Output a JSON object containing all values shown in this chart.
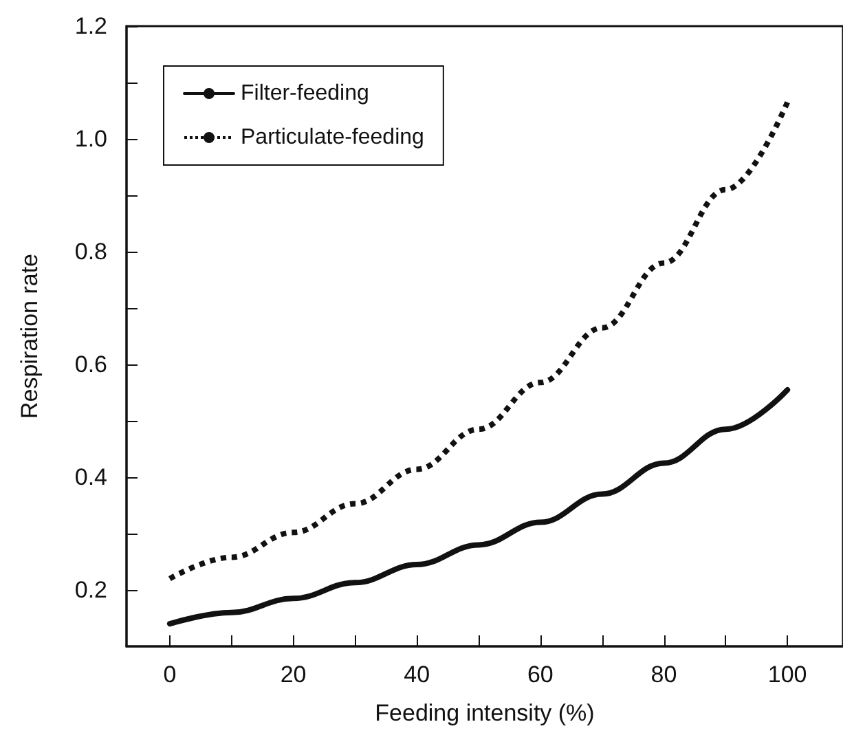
{
  "chart_data": {
    "type": "line",
    "xlabel": "Feeding intensity (%)",
    "ylabel": "Respiration rate",
    "x": [
      0,
      10,
      20,
      30,
      40,
      50,
      60,
      70,
      80,
      90,
      100
    ],
    "series": [
      {
        "name": "Filter-feeding",
        "color": "#111111",
        "line_style": "solid",
        "values": [
          0.14,
          0.16,
          0.185,
          0.213,
          0.245,
          0.28,
          0.32,
          0.37,
          0.425,
          0.485,
          0.555
        ]
      },
      {
        "name": "Particulate-feeding",
        "color": "#111111",
        "line_style": "dotted",
        "values": [
          0.22,
          0.258,
          0.302,
          0.353,
          0.414,
          0.485,
          0.568,
          0.665,
          0.78,
          0.91,
          1.065
        ]
      }
    ],
    "xlim": [
      -7,
      109
    ],
    "xticks": [
      0,
      {
        "value": 10,
        "label": null
      },
      20,
      {
        "value": 30,
        "label": null
      },
      40,
      {
        "value": 50,
        "label": null
      },
      60,
      {
        "value": 70,
        "label": null
      },
      80,
      {
        "value": 90,
        "label": null
      },
      100
    ],
    "ylim": [
      0.1,
      1.2
    ],
    "yticks": [
      0.2,
      {
        "value": 0.3,
        "label": null
      },
      0.4,
      {
        "value": 0.5,
        "label": null
      },
      0.6,
      {
        "value": 0.7,
        "label": null
      },
      0.8,
      {
        "value": 0.9,
        "label": null
      },
      {
        "value": 1.0,
        "label": "1.0"
      },
      {
        "value": 1.1,
        "label": null
      },
      1.2
    ],
    "legend": "top left",
    "grid": false,
    "marker": "none"
  }
}
